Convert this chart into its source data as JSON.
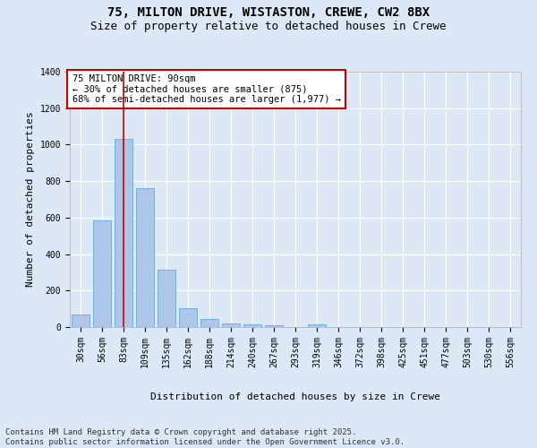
{
  "title_line1": "75, MILTON DRIVE, WISTASTON, CREWE, CW2 8BX",
  "title_line2": "Size of property relative to detached houses in Crewe",
  "xlabel": "Distribution of detached houses by size in Crewe",
  "ylabel": "Number of detached properties",
  "categories": [
    "30sqm",
    "56sqm",
    "83sqm",
    "109sqm",
    "135sqm",
    "162sqm",
    "188sqm",
    "214sqm",
    "240sqm",
    "267sqm",
    "293sqm",
    "319sqm",
    "346sqm",
    "372sqm",
    "398sqm",
    "425sqm",
    "451sqm",
    "477sqm",
    "503sqm",
    "530sqm",
    "556sqm"
  ],
  "values": [
    70,
    585,
    1030,
    760,
    315,
    105,
    43,
    22,
    15,
    12,
    0,
    15,
    0,
    0,
    0,
    0,
    0,
    0,
    0,
    0,
    0
  ],
  "bar_color": "#aec6e8",
  "bar_edge_color": "#5a9fd4",
  "vline_x": 2,
  "vline_color": "#cc0000",
  "annotation_text": "75 MILTON DRIVE: 90sqm\n← 30% of detached houses are smaller (875)\n68% of semi-detached houses are larger (1,977) →",
  "annotation_box_color": "#cc0000",
  "annotation_box_fill": "#ffffff",
  "background_color": "#dce8f5",
  "plot_background": "#dce8f5",
  "ylim": [
    0,
    1400
  ],
  "yticks": [
    0,
    200,
    400,
    600,
    800,
    1000,
    1200,
    1400
  ],
  "grid_color": "#ffffff",
  "footer_text": "Contains HM Land Registry data © Crown copyright and database right 2025.\nContains public sector information licensed under the Open Government Licence v3.0.",
  "title_fontsize": 10,
  "subtitle_fontsize": 9,
  "axis_label_fontsize": 8,
  "tick_fontsize": 7,
  "annotation_fontsize": 7.5,
  "footer_fontsize": 6.5
}
